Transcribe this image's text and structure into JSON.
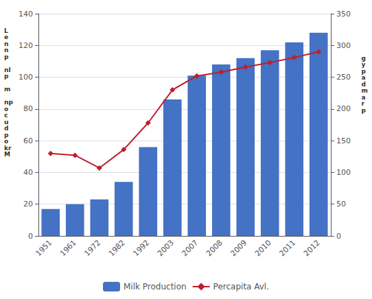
{
  "chart_data": {
    "type": "bar",
    "categories": [
      "1951",
      "1961",
      "1972",
      "1982",
      "1992",
      "2003",
      "2007",
      "2008",
      "2009",
      "2010",
      "2011",
      "2012"
    ],
    "series": [
      {
        "name": "Milk Production",
        "type": "bar",
        "color": "#4472C4",
        "values": [
          17,
          20,
          23,
          34,
          56,
          86,
          101,
          108,
          112,
          117,
          122,
          128
        ]
      },
      {
        "name": "Percapita Avl.",
        "type": "line",
        "color": "#BE1E2D",
        "marker": "diamond",
        "axis": "y2",
        "values": [
          130,
          127,
          107,
          136,
          178,
          230,
          252,
          258,
          266,
          273,
          281,
          290
        ]
      }
    ],
    "ylabel": "L\ne\nn\nn\np\n \nnl\np\n \nm\n \nnp\no\nc\nu\nd\np\no\nkr\nM",
    "y2label": "g\ny\np\na\nd\nm\na\nr\np",
    "ylim": [
      0,
      140
    ],
    "yticks": [
      0,
      20,
      40,
      60,
      80,
      100,
      120,
      140
    ],
    "y2lim": [
      0,
      350
    ],
    "y2ticks": [
      0,
      50,
      100,
      150,
      200,
      250,
      300,
      350
    ],
    "grid": true,
    "legend": "bottom"
  }
}
